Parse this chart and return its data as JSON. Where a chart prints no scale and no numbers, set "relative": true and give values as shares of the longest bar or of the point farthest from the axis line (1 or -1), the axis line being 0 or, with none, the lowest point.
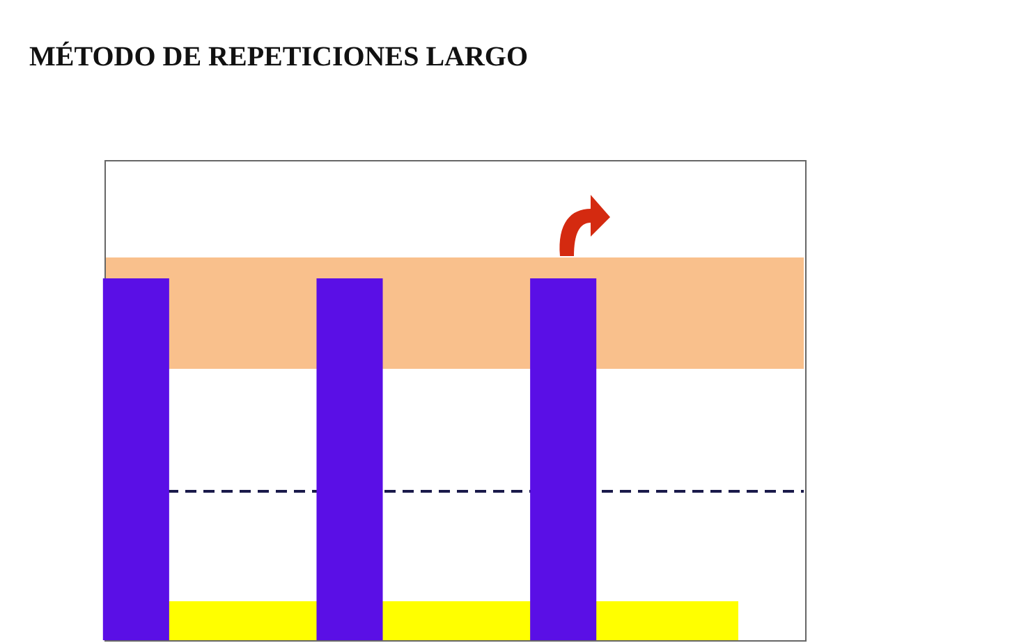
{
  "chart_data": {
    "type": "bar",
    "title": "MÉTODO DE REPETICIONES LARGO",
    "relative": true,
    "categories": [
      null,
      null,
      null
    ],
    "values": [
      1,
      1,
      1
    ],
    "color": "#5a0fe6"
  }
}
